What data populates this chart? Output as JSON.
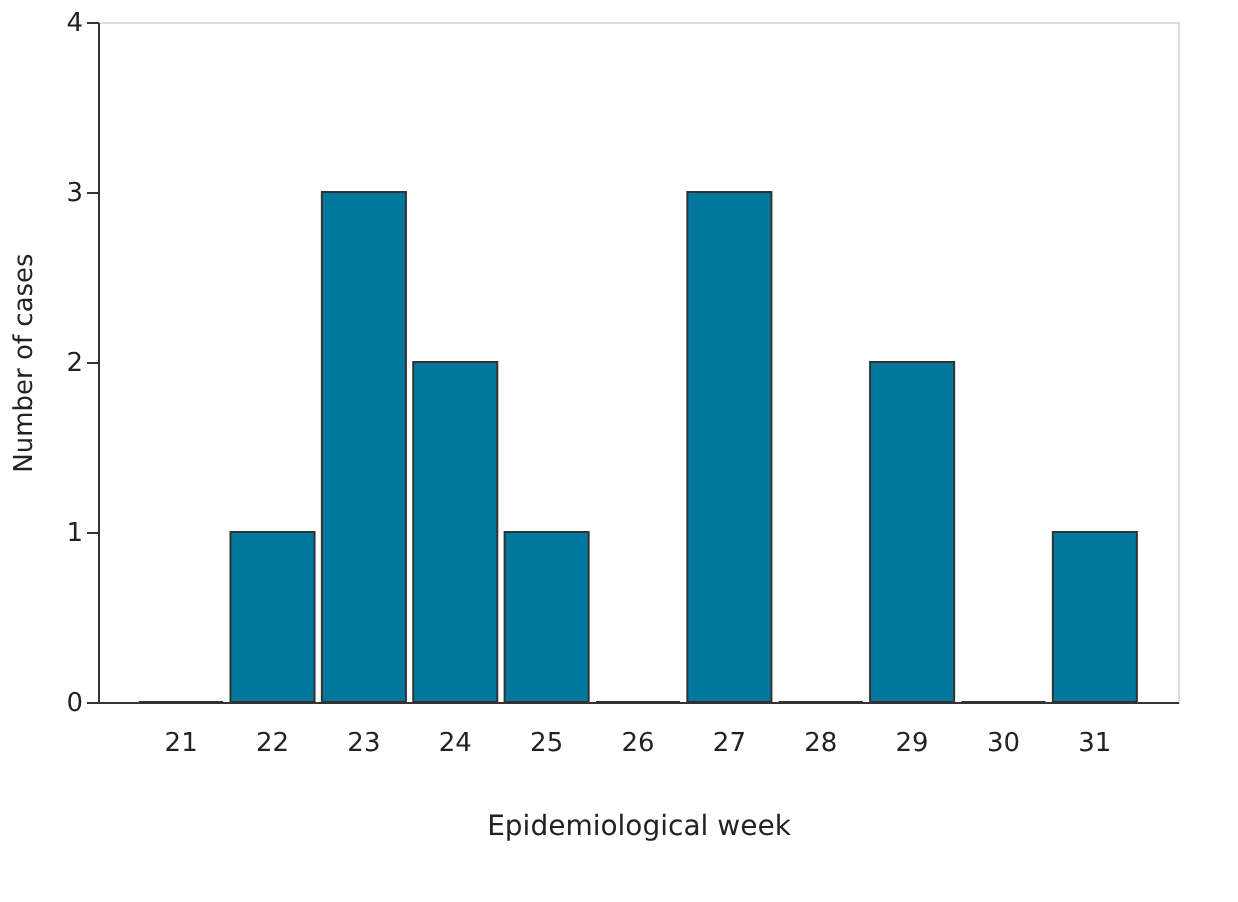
{
  "chart_data": {
    "type": "bar",
    "xlabel": "Epidemiological week",
    "ylabel": "Number of cases",
    "categories": [
      "21",
      "22",
      "23",
      "24",
      "25",
      "26",
      "27",
      "28",
      "29",
      "30",
      "31"
    ],
    "values": [
      0,
      1,
      3,
      2,
      1,
      0,
      3,
      0,
      2,
      0,
      1
    ],
    "color": "#00789e",
    "ylim": [
      0,
      4
    ],
    "yticks": [
      0,
      1,
      2,
      3,
      4
    ],
    "grid": false
  }
}
